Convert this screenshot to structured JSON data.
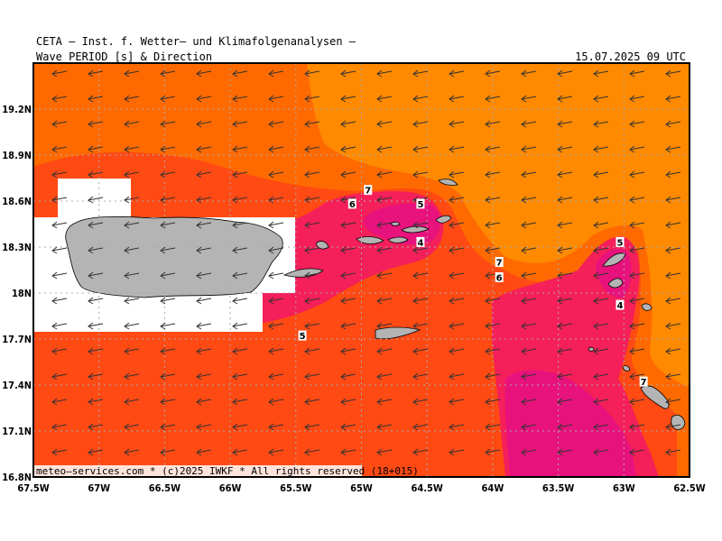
{
  "header": {
    "title": "CETA – Inst. f. Wetter– und Klimafolgenanalysen –",
    "subtitle": "Wave_PERIOD_[s]_&_Direction",
    "timestamp": "15.07.2025 09 UTC"
  },
  "footer": {
    "credit": "meteo–services.com * (c)2025 IWKF * All rights reserved (18+015)"
  },
  "axes": {
    "x_ticks": [
      {
        "value": -67.5,
        "label": "67.5W"
      },
      {
        "value": -67.0,
        "label": "67W"
      },
      {
        "value": -66.5,
        "label": "66.5W"
      },
      {
        "value": -66.0,
        "label": "66W"
      },
      {
        "value": -65.5,
        "label": "65.5W"
      },
      {
        "value": -65.0,
        "label": "65W"
      },
      {
        "value": -64.5,
        "label": "64.5W"
      },
      {
        "value": -64.0,
        "label": "64W"
      },
      {
        "value": -63.5,
        "label": "63.5W"
      },
      {
        "value": -63.0,
        "label": "63W"
      },
      {
        "value": -62.5,
        "label": "62.5W"
      }
    ],
    "y_ticks": [
      {
        "value": 16.8,
        "label": "16.8N"
      },
      {
        "value": 17.1,
        "label": "17.1N"
      },
      {
        "value": 17.4,
        "label": "17.4N"
      },
      {
        "value": 17.7,
        "label": "17.7N"
      },
      {
        "value": 18.0,
        "label": "18N"
      },
      {
        "value": 18.3,
        "label": "18.3N"
      },
      {
        "value": 18.6,
        "label": "18.6N"
      },
      {
        "value": 18.9,
        "label": "18.9N"
      },
      {
        "value": 19.2,
        "label": "19.2N"
      }
    ],
    "xlim": [
      -67.5,
      -62.5
    ],
    "ylim": [
      16.8,
      19.5
    ]
  },
  "colors": {
    "period_4": "#e8127d",
    "period_5": "#f51f5a",
    "period_6": "#ff4a14",
    "period_7": "#ff6a00",
    "period_8": "#ff8a00",
    "land": "#b4b4b4",
    "no_data": "#ffffff",
    "grid": "#aaaaaa",
    "arrow": "#333333"
  },
  "contour_labels": [
    {
      "text": "7",
      "lon": -64.95,
      "lat": 18.67
    },
    {
      "text": "6",
      "lon": -65.07,
      "lat": 18.58
    },
    {
      "text": "5",
      "lon": -64.55,
      "lat": 18.58
    },
    {
      "text": "4",
      "lon": -64.55,
      "lat": 18.33
    },
    {
      "text": "7",
      "lon": -63.95,
      "lat": 18.2
    },
    {
      "text": "6",
      "lon": -63.95,
      "lat": 18.1
    },
    {
      "text": "5",
      "lon": -63.03,
      "lat": 18.33
    },
    {
      "text": "4",
      "lon": -63.03,
      "lat": 17.92
    },
    {
      "text": "5",
      "lon": -65.45,
      "lat": 17.72
    },
    {
      "text": "7",
      "lon": -62.85,
      "lat": 17.42
    }
  ],
  "wave_direction": "from east (arrows pointing west)"
}
